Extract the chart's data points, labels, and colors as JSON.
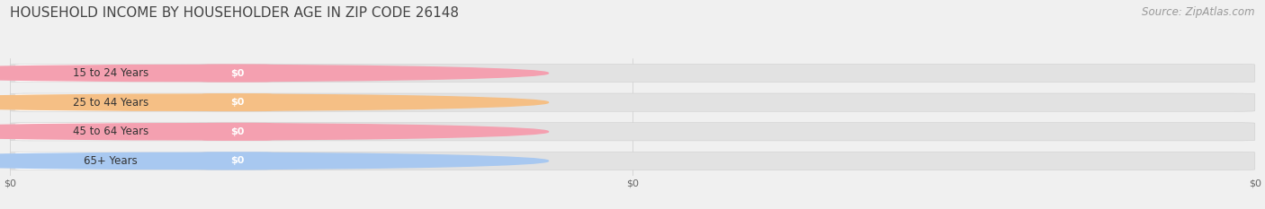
{
  "title": "HOUSEHOLD INCOME BY HOUSEHOLDER AGE IN ZIP CODE 26148",
  "source_text": "Source: ZipAtlas.com",
  "categories": [
    "15 to 24 Years",
    "25 to 44 Years",
    "45 to 64 Years",
    "65+ Years"
  ],
  "values": [
    0,
    0,
    0,
    0
  ],
  "bar_colors": [
    "#f4a0b0",
    "#f5bf85",
    "#f4a0b0",
    "#a8c8f0"
  ],
  "background_color": "#f0f0f0",
  "bar_track_color": "#e2e2e2",
  "bar_white_color": "#ffffff",
  "title_fontsize": 11,
  "source_fontsize": 8.5,
  "figsize": [
    14.06,
    2.33
  ],
  "dpi": 100
}
